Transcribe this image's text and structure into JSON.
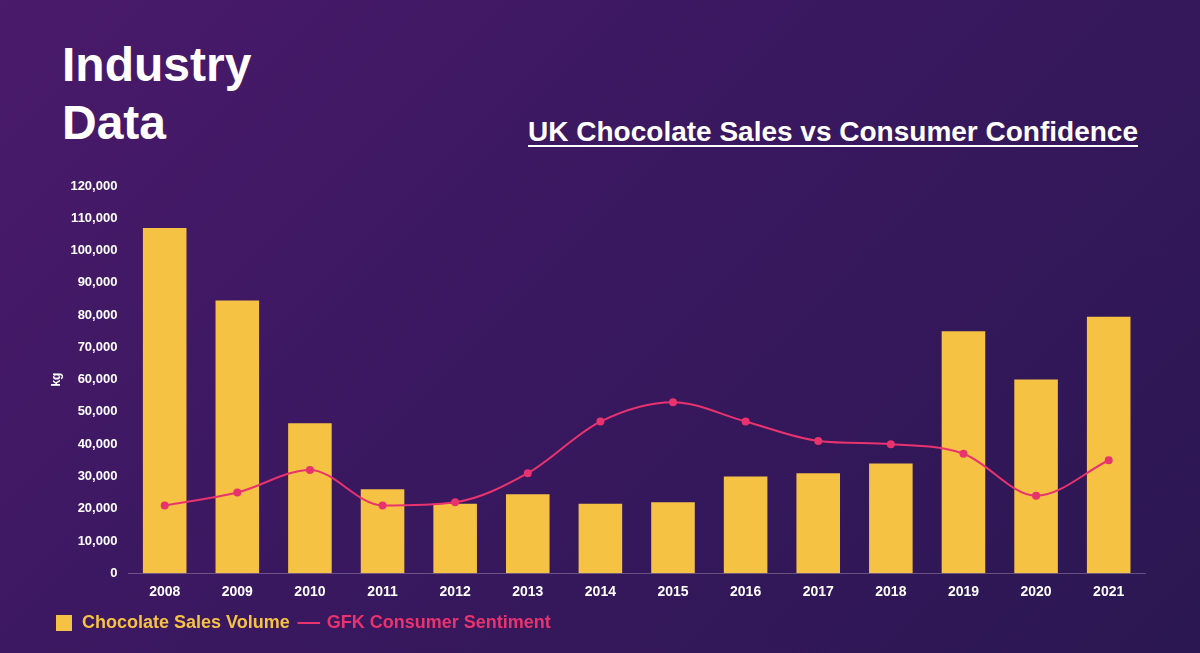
{
  "header": {
    "title": "Industry Data"
  },
  "chart_data": {
    "type": "bar",
    "title": "UK Chocolate Sales vs Consumer Confidence",
    "y_label": "kg",
    "categories": [
      "2008",
      "2009",
      "2010",
      "2011",
      "2012",
      "2013",
      "2014",
      "2015",
      "2016",
      "2017",
      "2018",
      "2019",
      "2020",
      "2021"
    ],
    "series": [
      {
        "name": "Chocolate Sales Volume",
        "type": "bar",
        "color": "#f6c244",
        "values": [
          107000,
          84500,
          46500,
          26000,
          21500,
          24500,
          21500,
          22000,
          30000,
          31000,
          34000,
          75000,
          60000,
          79500
        ]
      },
      {
        "name": "GFK Consumer Sentiment",
        "type": "line",
        "color": "#e8336e",
        "marker": "circle",
        "line_style": "solid",
        "values": [
          21000,
          25000,
          32000,
          21000,
          22000,
          31000,
          47000,
          53000,
          47000,
          41000,
          40000,
          37000,
          24000,
          35000
        ]
      }
    ],
    "ylim": [
      0,
      120000
    ],
    "yticks": [
      0,
      {
        "value": 10000,
        "label": "10,000"
      },
      {
        "value": 20000,
        "label": "20,000"
      },
      {
        "value": 30000,
        "label": "30,000"
      },
      {
        "value": 40000,
        "label": "40,000"
      },
      {
        "value": 50000,
        "label": "50,000"
      },
      {
        "value": 60000,
        "label": "60,000"
      },
      {
        "value": 70000,
        "label": "70,000"
      },
      {
        "value": 80000,
        "label": "80,000"
      },
      {
        "value": 90000,
        "label": "90,000"
      },
      {
        "value": 100000,
        "label": "100,000"
      },
      {
        "value": 110000,
        "label": "110,000"
      },
      {
        "value": 120000,
        "label": "120,000"
      }
    ],
    "grid": false,
    "legend": "bottom-left"
  }
}
